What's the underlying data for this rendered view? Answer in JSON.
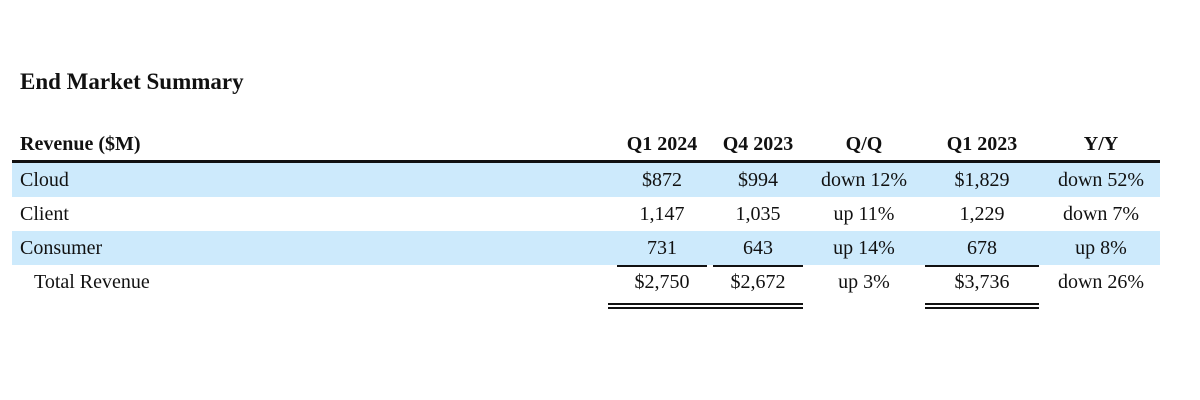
{
  "title": "End Market Summary",
  "table": {
    "headers": [
      "Revenue ($M)",
      "Q1 2024",
      "Q4 2023",
      "Q/Q",
      "Q1 2023",
      "Y/Y"
    ],
    "rows": [
      {
        "label": "Cloud",
        "q1_2024": "$872",
        "q4_2023": "$994",
        "qq": "down 12%",
        "q1_2023": "$1,829",
        "yy": "down 52%"
      },
      {
        "label": "Client",
        "q1_2024": "1,147",
        "q4_2023": "1,035",
        "qq": "up 11%",
        "q1_2023": "1,229",
        "yy": "down 7%"
      },
      {
        "label": "Consumer",
        "q1_2024": "731",
        "q4_2023": "643",
        "qq": "up 14%",
        "q1_2023": "678",
        "yy": "up 8%"
      }
    ],
    "total": {
      "label": "Total Revenue",
      "q1_2024": "$2,750",
      "q4_2023": "$2,672",
      "qq": "up 3%",
      "q1_2023": "$3,736",
      "yy": "down 26%"
    }
  },
  "colors": {
    "row_shading": "#cdeafc",
    "text": "#111111",
    "rule": "#111111"
  }
}
